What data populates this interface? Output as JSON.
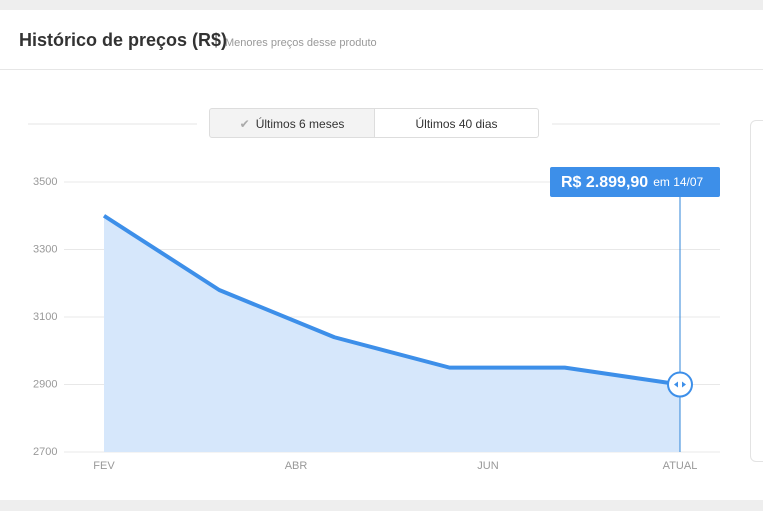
{
  "header": {
    "title": "Histórico de preços (R$)",
    "subtitle": "Menores preços desse produto"
  },
  "toggle": [
    "Últimos 6 meses",
    "Últimos 40 dias"
  ],
  "chart_data": {
    "type": "area",
    "x_labels": [
      "FEV",
      "ABR",
      "JUN",
      "ATUAL"
    ],
    "values": [
      3400,
      3180,
      3040,
      2950,
      2950,
      2899.9
    ],
    "value_labels": [
      null,
      null,
      null,
      null,
      null,
      "R$ 2.899,90"
    ],
    "annotation": "em 14/07",
    "color": "#3d8fe9",
    "ylim": [
      2700,
      3500
    ],
    "yticks": [
      3500,
      3300,
      3100,
      2900,
      2700
    ],
    "grid": true
  }
}
